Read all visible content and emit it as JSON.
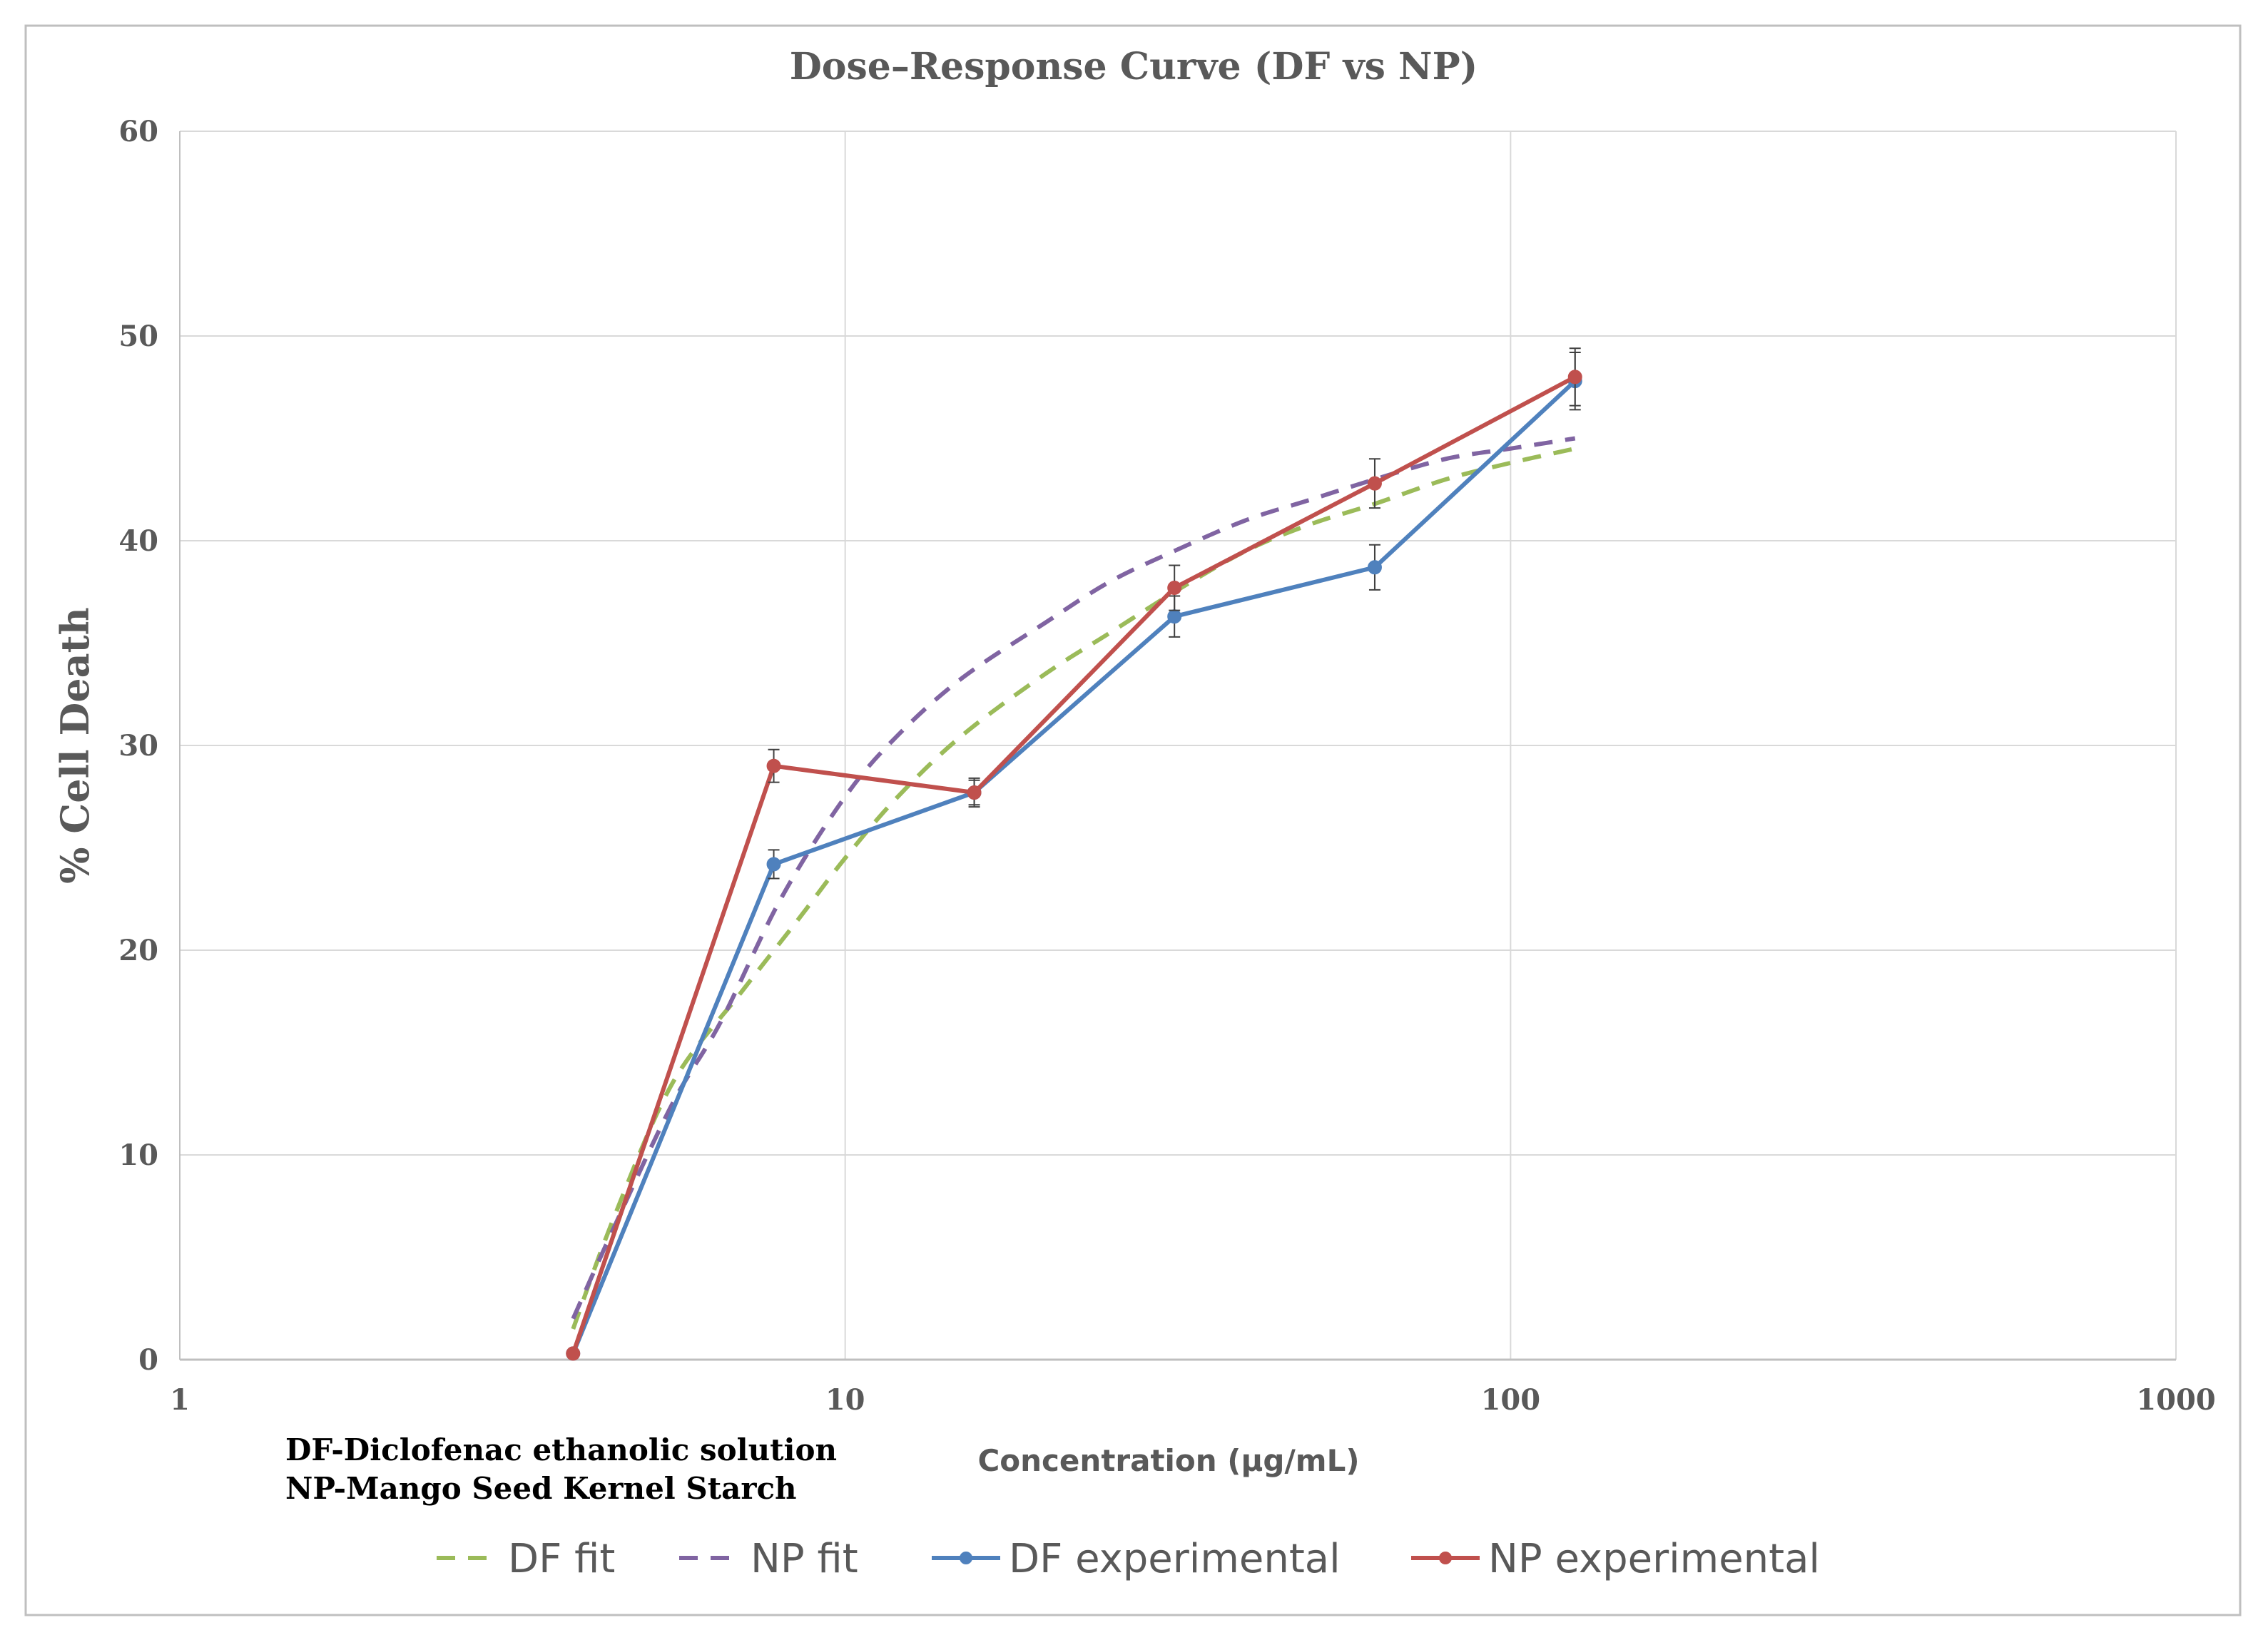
{
  "chart_data": {
    "type": "line",
    "title": "Dose–Response Curve (DF vs NP)",
    "xlabel": "Concentration (µg/mL)",
    "ylabel": "% Cell Death",
    "x_scale": "log",
    "xlim": [
      1,
      1000
    ],
    "ylim": [
      0,
      60
    ],
    "x_ticks": [
      1,
      10,
      100,
      1000
    ],
    "x_tick_labels": [
      "1",
      "10",
      "100",
      "1000"
    ],
    "y_ticks": [
      0,
      10,
      20,
      30,
      40,
      50,
      60
    ],
    "y_tick_labels": [
      "0",
      "10",
      "20",
      "30",
      "40",
      "50",
      "60"
    ],
    "grid": true,
    "legend_position": "bottom",
    "notes": [
      "DF-Diclofenac ethanolic solution",
      "NP-Mango Seed Kernel Starch"
    ],
    "series": [
      {
        "name": "DF fit",
        "style": "dashed",
        "color": "#9BBB59",
        "x": [
          3.9,
          4.5,
          5.5,
          7,
          8.5,
          10,
          12,
          15,
          20,
          25,
          31.25,
          40,
          50,
          62.5,
          80,
          100,
          125
        ],
        "y": [
          1.5,
          7,
          13.5,
          18,
          21.5,
          24.5,
          27.5,
          30.5,
          33.5,
          35.5,
          37.5,
          39.5,
          40.8,
          41.8,
          43,
          43.8,
          44.5
        ]
      },
      {
        "name": "NP fit",
        "style": "dashed",
        "color": "#8064A2",
        "x": [
          3.9,
          4.5,
          5.5,
          6.5,
          8,
          10,
          12,
          15,
          20,
          25,
          31.25,
          40,
          50,
          62.5,
          80,
          100,
          125
        ],
        "y": [
          2,
          6.5,
          12.5,
          16.5,
          22.5,
          27.5,
          30.5,
          33.3,
          36,
          38,
          39.5,
          41,
          42,
          43,
          44,
          44.5,
          45
        ]
      },
      {
        "name": "DF experimental",
        "style": "solid",
        "color": "#4F81BD",
        "x": [
          3.9,
          7.81,
          15.63,
          31.25,
          62.5,
          125
        ],
        "y": [
          0.3,
          24.2,
          27.7,
          36.3,
          38.7,
          47.8
        ],
        "error": [
          0,
          0.7,
          0.6,
          1.0,
          1.1,
          1.4
        ]
      },
      {
        "name": "NP experimental",
        "style": "solid",
        "color": "#C0504D",
        "x": [
          3.9,
          7.81,
          15.63,
          31.25,
          62.5,
          125
        ],
        "y": [
          0.3,
          29.0,
          27.7,
          37.7,
          42.8,
          48.0
        ],
        "error": [
          0,
          0.8,
          0.7,
          1.1,
          1.2,
          1.4
        ]
      }
    ]
  }
}
